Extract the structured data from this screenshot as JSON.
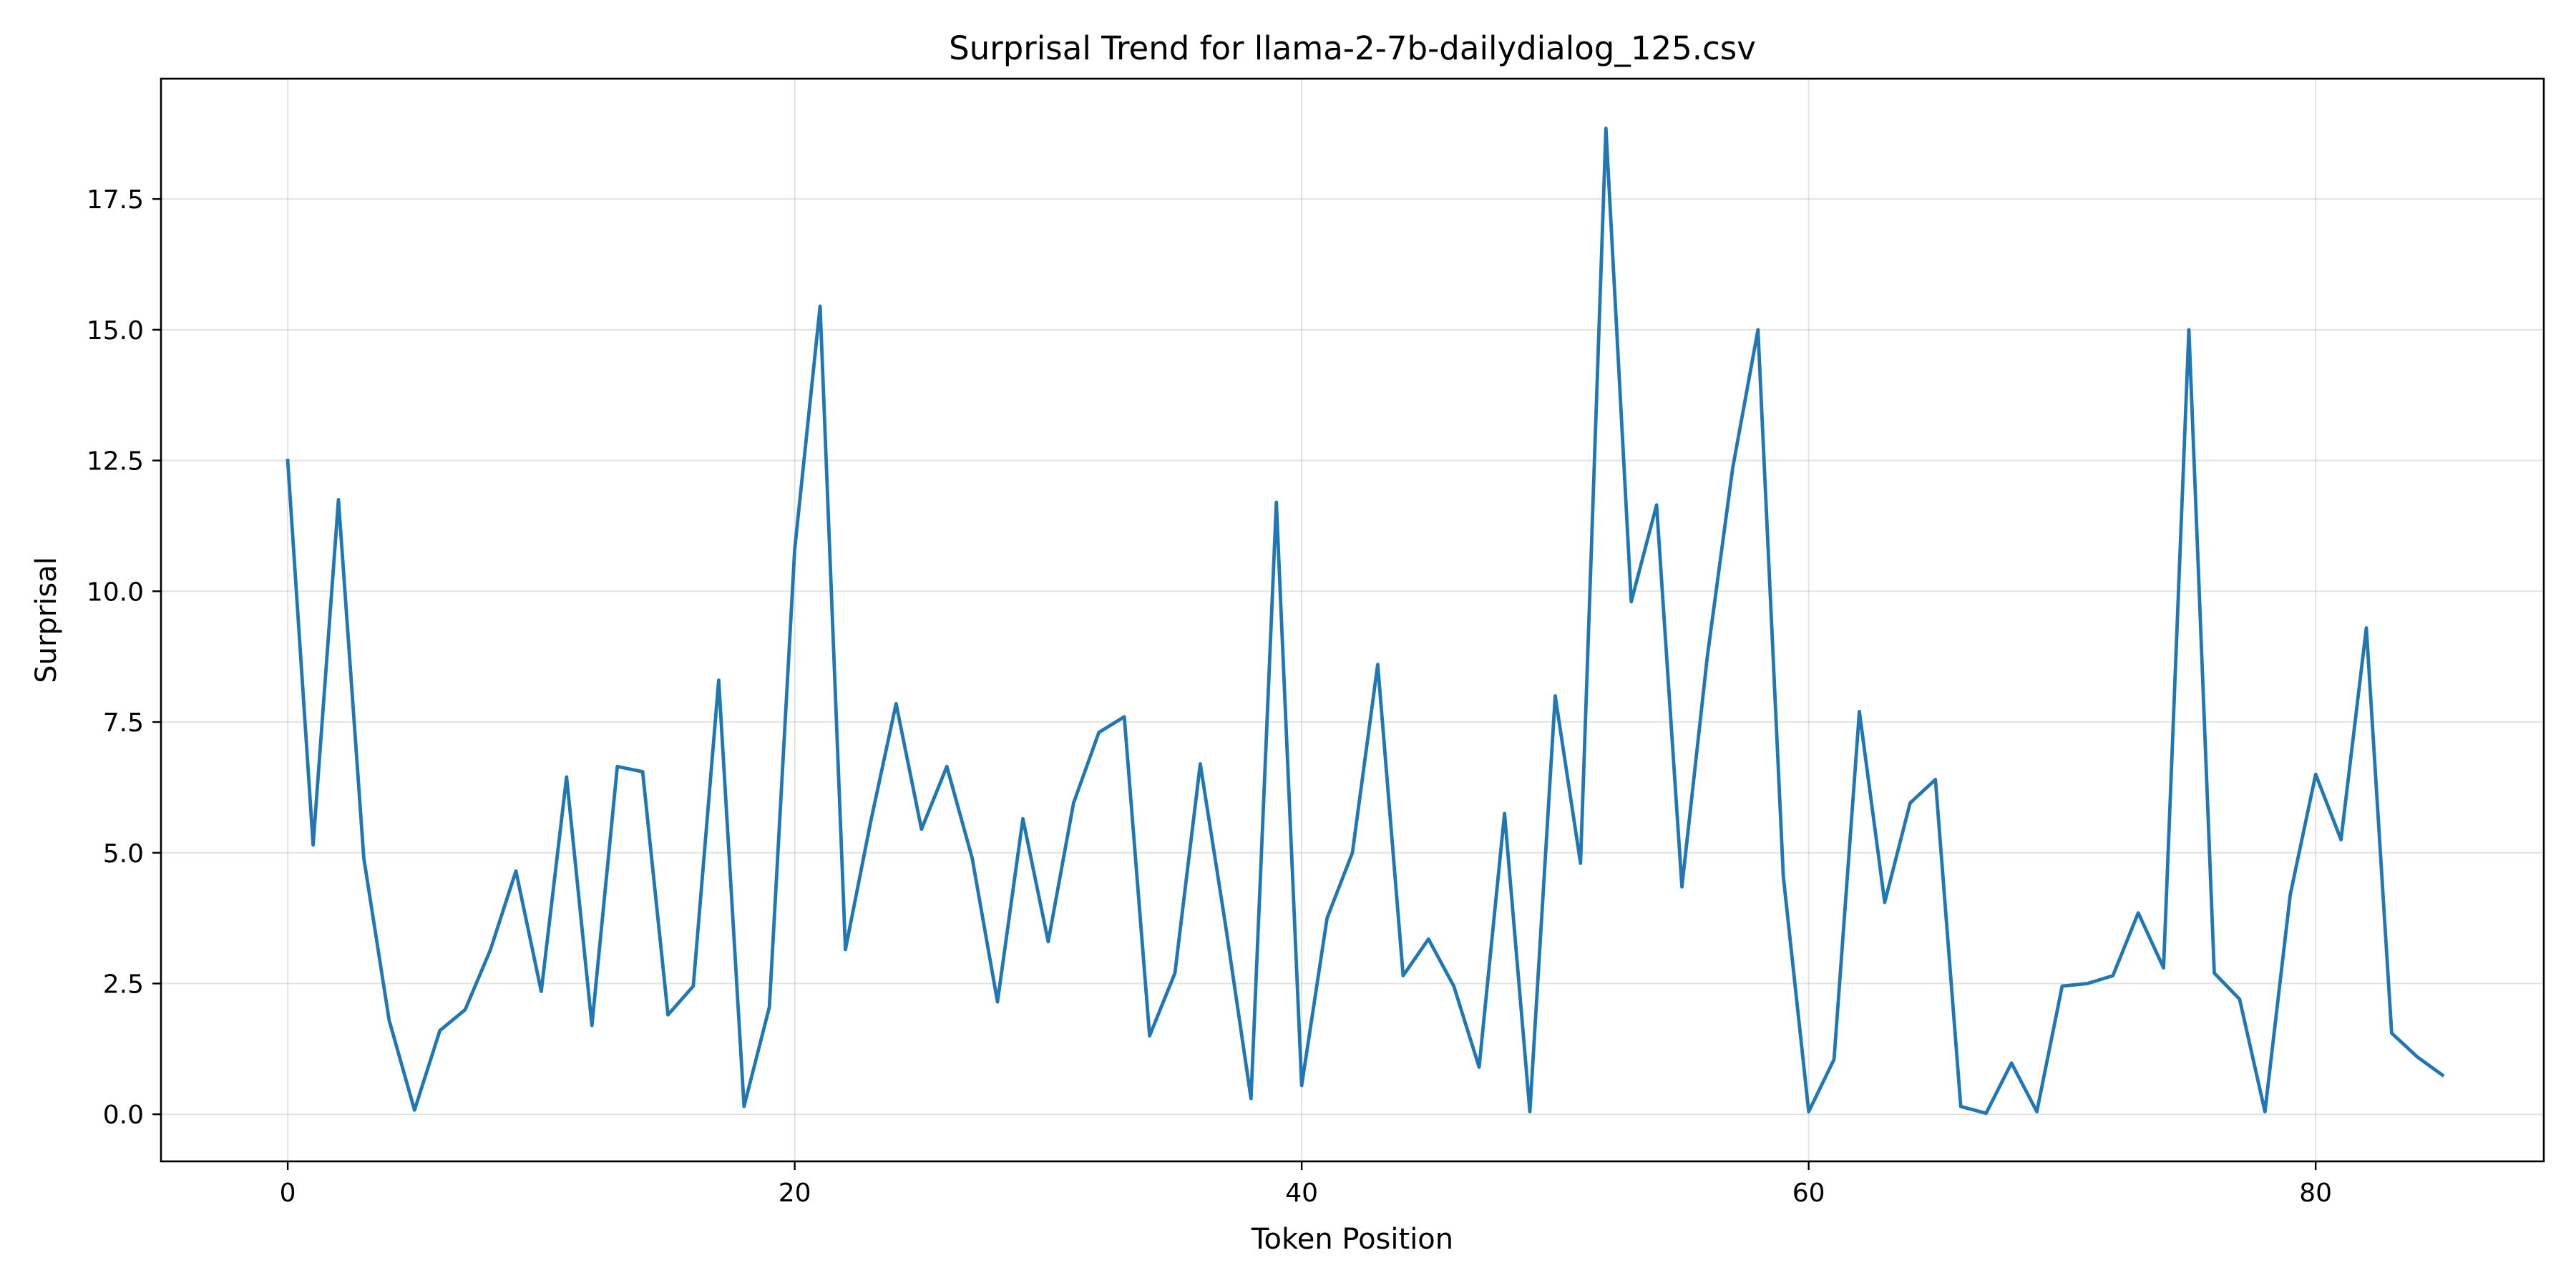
{
  "chart_data": {
    "type": "line",
    "title": "Surprisal Trend for llama-2-7b-dailydialog_125.csv",
    "xlabel": "Token Position",
    "ylabel": "Surprisal",
    "xlim": [
      -5,
      89
    ],
    "ylim": [
      -0.9,
      19.8
    ],
    "xticks": [
      0,
      20,
      40,
      60,
      80
    ],
    "yticks": [
      0.0,
      2.5,
      5.0,
      7.5,
      10.0,
      12.5,
      15.0,
      17.5
    ],
    "grid": true,
    "legend": "none",
    "series": [
      {
        "color": "#1f77b4",
        "x": [
          0,
          1,
          2,
          3,
          4,
          5,
          6,
          7,
          8,
          9,
          10,
          11,
          12,
          13,
          14,
          15,
          16,
          17,
          18,
          19,
          20,
          21,
          22,
          23,
          24,
          25,
          26,
          27,
          28,
          29,
          30,
          31,
          32,
          33,
          34,
          35,
          36,
          37,
          38,
          39,
          40,
          41,
          42,
          43,
          44,
          45,
          46,
          47,
          48,
          49,
          50,
          51,
          52,
          53,
          54,
          55,
          56,
          57,
          58,
          59,
          60,
          61,
          62,
          63,
          64,
          65,
          66,
          67,
          68,
          69,
          70,
          71,
          72,
          73,
          74,
          75,
          76,
          77,
          78,
          79,
          80,
          81,
          82,
          83,
          84,
          85
        ],
        "y": [
          12.5,
          5.15,
          11.75,
          4.9,
          1.8,
          0.08,
          1.6,
          2.0,
          3.15,
          4.65,
          2.35,
          6.45,
          1.7,
          6.65,
          6.55,
          1.9,
          2.45,
          8.3,
          0.15,
          2.05,
          10.8,
          15.45,
          3.15,
          5.6,
          7.85,
          5.45,
          6.65,
          4.9,
          2.15,
          5.65,
          3.3,
          5.95,
          7.3,
          7.6,
          1.5,
          2.7,
          6.7,
          3.6,
          0.3,
          11.7,
          0.55,
          3.75,
          5.0,
          8.6,
          2.65,
          3.35,
          2.45,
          0.9,
          5.75,
          0.05,
          8.0,
          4.8,
          18.85,
          9.8,
          11.65,
          4.35,
          8.75,
          12.35,
          15.0,
          4.55,
          0.05,
          1.05,
          7.7,
          4.05,
          5.95,
          6.4,
          0.15,
          0.02,
          0.98,
          0.05,
          2.45,
          2.5,
          2.65,
          3.85,
          2.8,
          15.0,
          2.7,
          2.2,
          0.05,
          4.2,
          6.5,
          5.25,
          9.3,
          1.55,
          1.1,
          0.75
        ]
      }
    ]
  }
}
